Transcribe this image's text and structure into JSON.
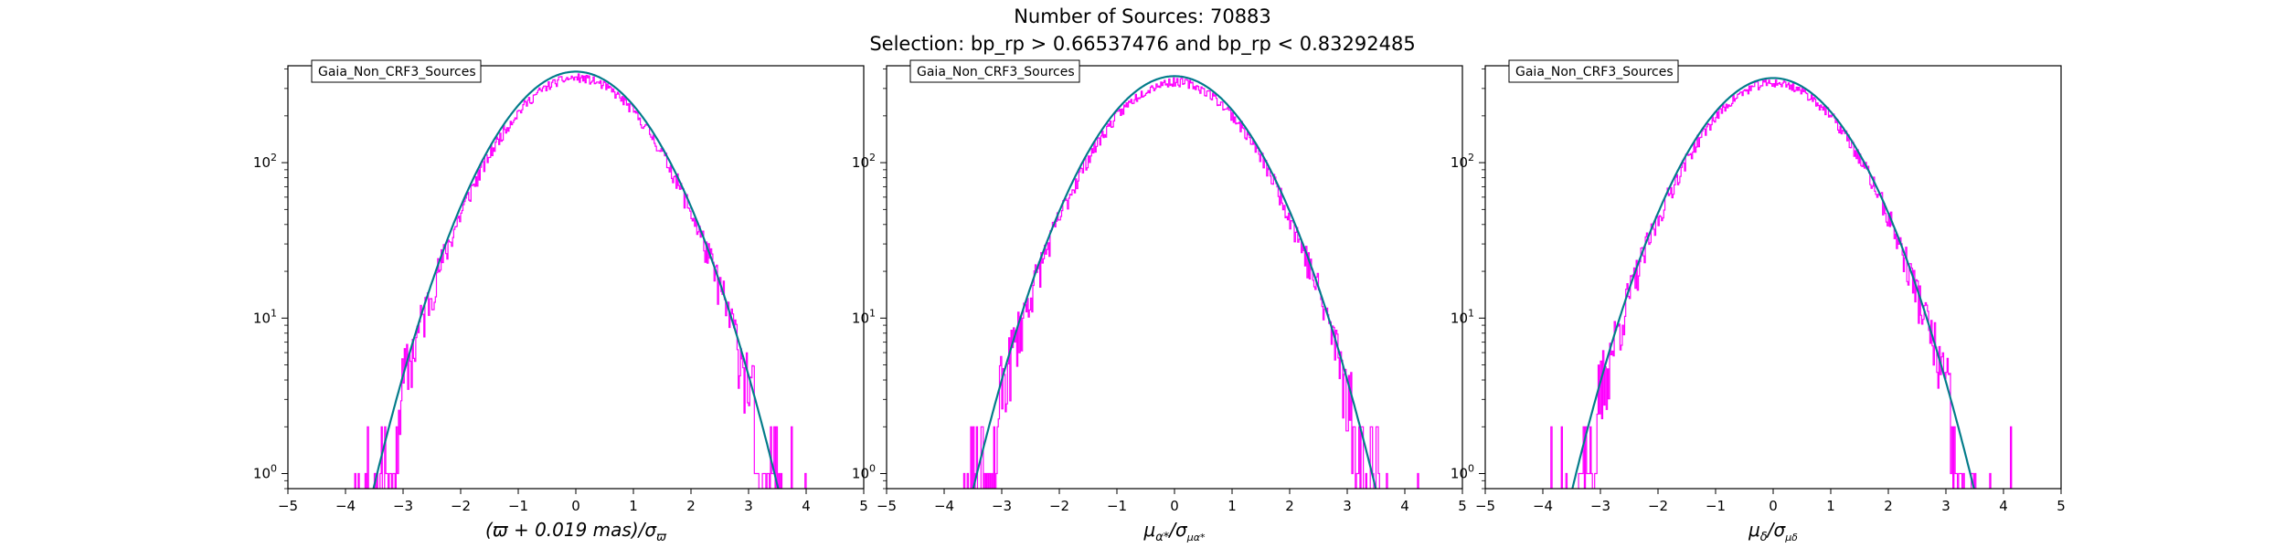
{
  "figure": {
    "title_line1": "Number of Sources: 70883",
    "title_line2": "Selection: bp_rp > 0.66537476 and bp_rp < 0.83292485"
  },
  "colors": {
    "histogram": "#ff00ff",
    "gaussian_a": "#008080",
    "gaussian_b": "#1f77b4",
    "axes": "#000000",
    "legend_border": "#000000"
  },
  "chart_data": [
    {
      "type": "line",
      "legend": "Gaia_Non_CRF3_Sources",
      "legend_position": "top-left",
      "xlabel": "(ϖ + 0.019 mas)/σϖ",
      "xlabel_parts": {
        "main": "(ϖ + 0.019 mas)/σ",
        "sub": "ϖ"
      },
      "ylabel": "",
      "xlim": [
        -5,
        5
      ],
      "ylim": [
        0.8,
        420
      ],
      "yscale": "log",
      "x_ticks": [
        "−5",
        "−4",
        "−3",
        "−2",
        "−1",
        "0",
        "1",
        "2",
        "3",
        "4",
        "5"
      ],
      "y_ticks": [
        {
          "base": "10",
          "exp": "0"
        },
        {
          "base": "10",
          "exp": "1"
        },
        {
          "base": "10",
          "exp": "2"
        }
      ],
      "grid": false,
      "series": [
        {
          "kind": "histogram",
          "peak": 350,
          "bin_width": 0.02,
          "xmin": -4.9,
          "xmax": 4.6,
          "seed": 11
        },
        {
          "kind": "gaussian",
          "amplitude": 385,
          "mean": 0.0,
          "sigma": 1.0
        }
      ]
    },
    {
      "type": "line",
      "legend": "Gaia_Non_CRF3_Sources",
      "legend_position": "top-left",
      "xlabel": "μα*/σμα*",
      "xlabel_parts": {
        "main": "μ",
        "sub": "α*",
        "main2": "/σ",
        "sub2": "μα*"
      },
      "ylabel": "",
      "xlim": [
        -5,
        5
      ],
      "ylim": [
        0.8,
        420
      ],
      "yscale": "log",
      "x_ticks": [
        "−5",
        "−4",
        "−3",
        "−2",
        "−1",
        "0",
        "1",
        "2",
        "3",
        "4",
        "5"
      ],
      "y_ticks": [
        {
          "base": "10",
          "exp": "0"
        },
        {
          "base": "10",
          "exp": "1"
        },
        {
          "base": "10",
          "exp": "2"
        }
      ],
      "grid": false,
      "series": [
        {
          "kind": "histogram",
          "peak": 330,
          "bin_width": 0.02,
          "xmin": -4.7,
          "xmax": 4.6,
          "seed": 23
        },
        {
          "kind": "gaussian",
          "amplitude": 360,
          "mean": 0.0,
          "sigma": 1.0
        }
      ]
    },
    {
      "type": "line",
      "legend": "Gaia_Non_CRF3_Sources",
      "legend_position": "top-left",
      "xlabel": "μδ/σμδ",
      "xlabel_parts": {
        "main": "μ",
        "sub": "δ",
        "main2": "/σ",
        "sub2": "μδ"
      },
      "ylabel": "",
      "xlim": [
        -5,
        5
      ],
      "ylim": [
        0.8,
        420
      ],
      "yscale": "log",
      "x_ticks": [
        "−5",
        "−4",
        "−3",
        "−2",
        "−1",
        "0",
        "1",
        "2",
        "3",
        "4",
        "5"
      ],
      "y_ticks": [
        {
          "base": "10",
          "exp": "0"
        },
        {
          "base": "10",
          "exp": "1"
        },
        {
          "base": "10",
          "exp": "2"
        }
      ],
      "grid": false,
      "series": [
        {
          "kind": "histogram",
          "peak": 325,
          "bin_width": 0.02,
          "xmin": -4.5,
          "xmax": 4.4,
          "seed": 37
        },
        {
          "kind": "gaussian",
          "amplitude": 350,
          "mean": 0.0,
          "sigma": 1.0
        }
      ]
    }
  ]
}
